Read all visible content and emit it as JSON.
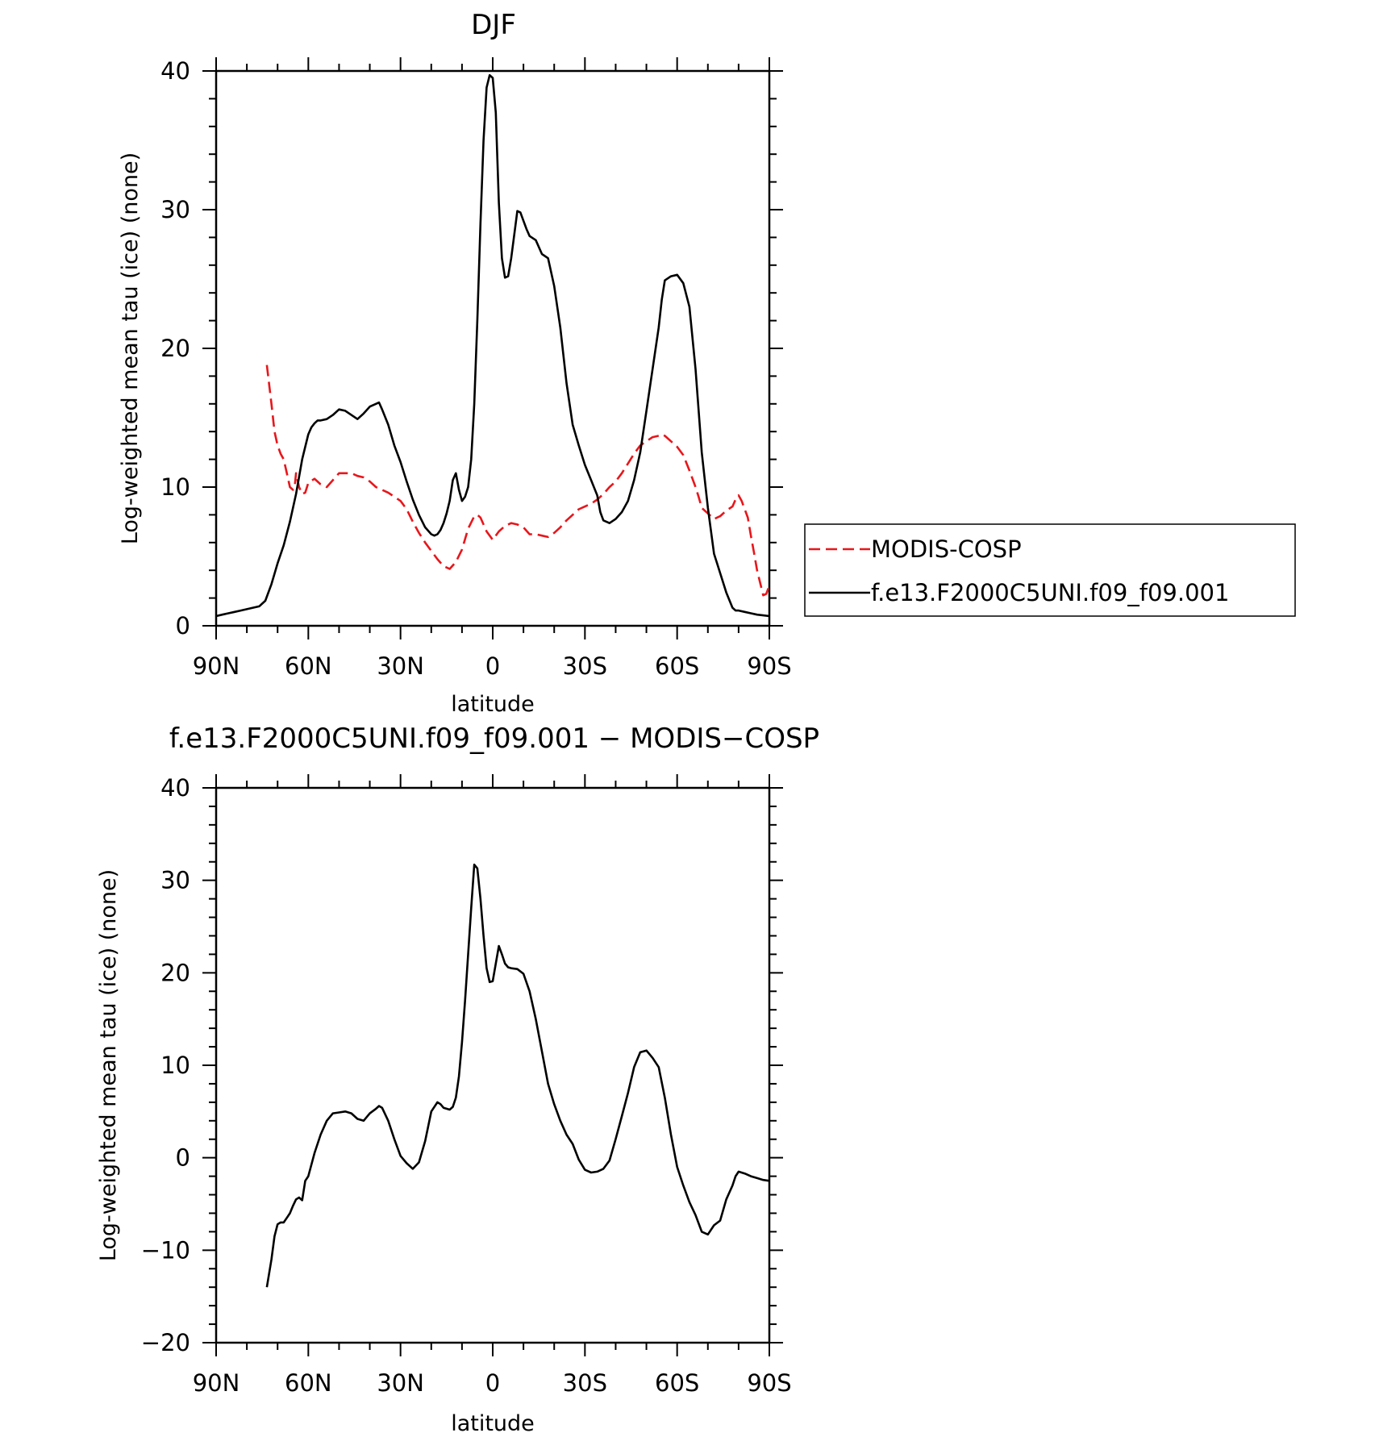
{
  "chart_data": [
    {
      "type": "line",
      "title": "DJF",
      "xlabel": "latitude",
      "ylabel": "Log-weighted mean tau (ice) (none)",
      "xlim": [
        -90,
        90
      ],
      "ylim": [
        0,
        40
      ],
      "x_ticks": [
        -90,
        -60,
        -30,
        0,
        30,
        60,
        90
      ],
      "x_tick_labels": [
        "90N",
        "60N",
        "30N",
        "0",
        "30S",
        "60S",
        "90S"
      ],
      "y_ticks": [
        0,
        10,
        20,
        30,
        40
      ],
      "y_tick_labels": [
        "0",
        "10",
        "20",
        "30",
        "40"
      ],
      "legend": {
        "position": "right",
        "entries": [
          "MODIS-COSP",
          "f.e13.F2000C5UNI.f09_f09.001"
        ]
      },
      "series": [
        {
          "name": "MODIS-COSP",
          "color": "#e8161b",
          "dash": "dashed",
          "x": [
            -73.5,
            -72,
            -71,
            -70,
            -69,
            -68,
            -67,
            -66,
            -65,
            -64.5,
            -64,
            -63,
            -62,
            -61,
            -60,
            -58,
            -56,
            -54,
            -52,
            -50,
            -48,
            -46,
            -44,
            -42,
            -40,
            -38,
            -36,
            -34,
            -32,
            -30,
            -28,
            -26,
            -24,
            -22,
            -20,
            -18,
            -16,
            -14,
            -12,
            -10,
            -8,
            -6,
            -5,
            -4,
            -2,
            0,
            2,
            4,
            6,
            8,
            10,
            12,
            14,
            16,
            18,
            20,
            22,
            24,
            26,
            28,
            30,
            32,
            34,
            36,
            38,
            40,
            42,
            44,
            46,
            48,
            50,
            52,
            54,
            55,
            56,
            58,
            60,
            62,
            64,
            66,
            67,
            68,
            70,
            72,
            74,
            76,
            78,
            79,
            80,
            81,
            82,
            83,
            84,
            85,
            86,
            87,
            88,
            89,
            90
          ],
          "values": [
            18.8,
            16,
            14,
            13,
            12.4,
            12,
            11,
            10,
            9.8,
            9.9,
            11,
            10,
            9.5,
            9.6,
            10.3,
            10.6,
            10.2,
            10,
            10.5,
            11,
            11,
            11,
            10.8,
            10.7,
            10.4,
            10,
            9.8,
            9.6,
            9.3,
            9,
            8.4,
            7.5,
            6.7,
            6,
            5.4,
            4.8,
            4.3,
            4.1,
            4.6,
            5.5,
            7,
            7.9,
            8,
            7.8,
            6.8,
            6.2,
            6.8,
            7.2,
            7.4,
            7.3,
            7.1,
            6.6,
            6.6,
            6.5,
            6.4,
            6.7,
            7.1,
            7.6,
            8,
            8.4,
            8.6,
            8.8,
            9.1,
            9.5,
            10,
            10.4,
            11,
            11.7,
            12.4,
            13,
            13.3,
            13.6,
            13.7,
            13.8,
            13.7,
            13.3,
            12.9,
            12.3,
            11.2,
            10,
            9.3,
            8.5,
            8.1,
            7.7,
            7.9,
            8.3,
            8.6,
            9.1,
            9.4,
            9,
            8.4,
            7.8,
            6.5,
            5.3,
            4,
            3.1,
            2.2,
            2.3,
            2.9
          ]
        },
        {
          "name": "f.e13.F2000C5UNI.f09_f09.001",
          "color": "#000000",
          "dash": "solid",
          "x": [
            -90,
            -88,
            -86,
            -84,
            -82,
            -80,
            -78,
            -76,
            -74,
            -72,
            -70,
            -68,
            -66,
            -64,
            -62,
            -60,
            -59,
            -58,
            -57,
            -56,
            -54,
            -52,
            -50,
            -48,
            -46,
            -44,
            -42,
            -40,
            -38,
            -37,
            -36,
            -34,
            -32,
            -30,
            -28,
            -26,
            -24,
            -22,
            -20,
            -19,
            -18,
            -17,
            -16,
            -15,
            -14,
            -13,
            -12,
            -11,
            -10,
            -9,
            -8,
            -7,
            -6,
            -5,
            -4,
            -3,
            -2,
            -1,
            0,
            1,
            2,
            3,
            4,
            5,
            6,
            7,
            8,
            9,
            10,
            11,
            12,
            14,
            16,
            18,
            20,
            22,
            24,
            26,
            28,
            30,
            32,
            34,
            35,
            36,
            38,
            40,
            42,
            44,
            46,
            48,
            50,
            52,
            54,
            55,
            56,
            58,
            60,
            62,
            64,
            66,
            68,
            70,
            72,
            74,
            76,
            78,
            79,
            80,
            82,
            84,
            86,
            88,
            90
          ],
          "values": [
            0.7,
            0.8,
            0.9,
            1.0,
            1.1,
            1.2,
            1.3,
            1.4,
            1.8,
            3.0,
            4.5,
            5.8,
            7.5,
            9.5,
            12,
            13.8,
            14.3,
            14.6,
            14.8,
            14.8,
            14.9,
            15.2,
            15.6,
            15.5,
            15.2,
            14.9,
            15.3,
            15.8,
            16,
            16.1,
            15.6,
            14.5,
            13,
            11.8,
            10.4,
            9.1,
            8,
            7.1,
            6.6,
            6.5,
            6.6,
            6.9,
            7.4,
            8.1,
            9,
            10.5,
            11,
            9.8,
            9,
            9.3,
            10,
            12,
            16,
            22,
            29,
            35,
            38.8,
            39.7,
            39.5,
            37,
            30.5,
            26.5,
            25.1,
            25.2,
            26.5,
            28.2,
            29.9,
            29.8,
            29.2,
            28.6,
            28.1,
            27.8,
            26.8,
            26.5,
            24.5,
            21.5,
            17.5,
            14.5,
            13,
            11.6,
            10.5,
            9.4,
            8.2,
            7.6,
            7.4,
            7.7,
            8.2,
            9.0,
            10.5,
            12.5,
            15.5,
            18.5,
            21.5,
            23.5,
            24.9,
            25.2,
            25.3,
            24.7,
            23,
            18.5,
            12.5,
            8.5,
            5.2,
            3.8,
            2.4,
            1.3,
            1.1,
            1.1,
            1.0,
            0.9,
            0.8,
            0.75,
            0.7
          ]
        }
      ]
    },
    {
      "type": "line",
      "title": "f.e13.F2000C5UNI.f09_f09.001 − MODIS−COSP",
      "xlabel": "latitude",
      "ylabel": "Log-weighted mean tau (ice) (none)",
      "xlim": [
        -90,
        90
      ],
      "ylim": [
        -20,
        40
      ],
      "x_ticks": [
        -90,
        -60,
        -30,
        0,
        30,
        60,
        90
      ],
      "x_tick_labels": [
        "90N",
        "60N",
        "30N",
        "0",
        "30S",
        "60S",
        "90S"
      ],
      "y_ticks": [
        -20,
        -10,
        0,
        10,
        20,
        30,
        40
      ],
      "y_tick_labels": [
        "−20",
        "−10",
        "0",
        "10",
        "20",
        "30",
        "40"
      ],
      "series": [
        {
          "name": "f.e13.F2000C5UNI.f09_f09.001 - MODIS-COSP",
          "color": "#000000",
          "dash": "solid",
          "x": [
            -73.5,
            -72,
            -71,
            -70,
            -69,
            -68,
            -67,
            -66,
            -65,
            -64,
            -63,
            -62,
            -61,
            -60,
            -58,
            -56,
            -54,
            -52,
            -50,
            -48,
            -46,
            -44,
            -42,
            -40,
            -38,
            -37,
            -36,
            -34,
            -32,
            -30,
            -28,
            -26,
            -24,
            -22,
            -20,
            -18,
            -17,
            -16,
            -14,
            -13,
            -12,
            -11,
            -10,
            -9,
            -8,
            -7,
            -6,
            -5,
            -4,
            -3,
            -2,
            -1,
            0,
            1,
            2,
            3,
            4,
            5,
            6,
            8,
            10,
            12,
            14,
            16,
            18,
            20,
            22,
            24,
            26,
            28,
            30,
            32,
            34,
            36,
            38,
            40,
            42,
            44,
            46,
            48,
            50,
            52,
            54,
            56,
            58,
            60,
            62,
            64,
            66,
            68,
            70,
            72,
            74,
            76,
            78,
            79,
            80,
            82,
            84,
            86,
            88,
            90
          ],
          "values": [
            -14,
            -11,
            -8.5,
            -7.2,
            -7,
            -7,
            -6.5,
            -6,
            -5.2,
            -4.5,
            -4.3,
            -4.6,
            -2.5,
            -2,
            0.5,
            2.5,
            4,
            4.8,
            4.9,
            5.0,
            4.8,
            4.2,
            4.0,
            4.8,
            5.3,
            5.6,
            5.4,
            4,
            2,
            0.2,
            -0.6,
            -1.2,
            -0.5,
            1.8,
            5,
            6,
            5.8,
            5.4,
            5.2,
            5.5,
            6.5,
            8.8,
            12.5,
            17,
            22,
            27,
            31.7,
            31.3,
            28,
            24,
            20.5,
            19,
            19.1,
            21,
            22.9,
            22,
            21,
            20.6,
            20.5,
            20.4,
            19.9,
            18,
            15,
            11.5,
            8,
            5.8,
            4,
            2.5,
            1.5,
            -0.2,
            -1.3,
            -1.6,
            -1.5,
            -1.2,
            -0.3,
            2,
            4.5,
            7,
            9.8,
            11.4,
            11.6,
            10.8,
            9.8,
            6.5,
            2.5,
            -1,
            -3,
            -4.8,
            -6.2,
            -8,
            -8.3,
            -7.3,
            -6.8,
            -4.5,
            -3,
            -2,
            -1.5,
            -1.7,
            -2,
            -2.2,
            -2.4,
            -2.5
          ]
        }
      ]
    }
  ]
}
